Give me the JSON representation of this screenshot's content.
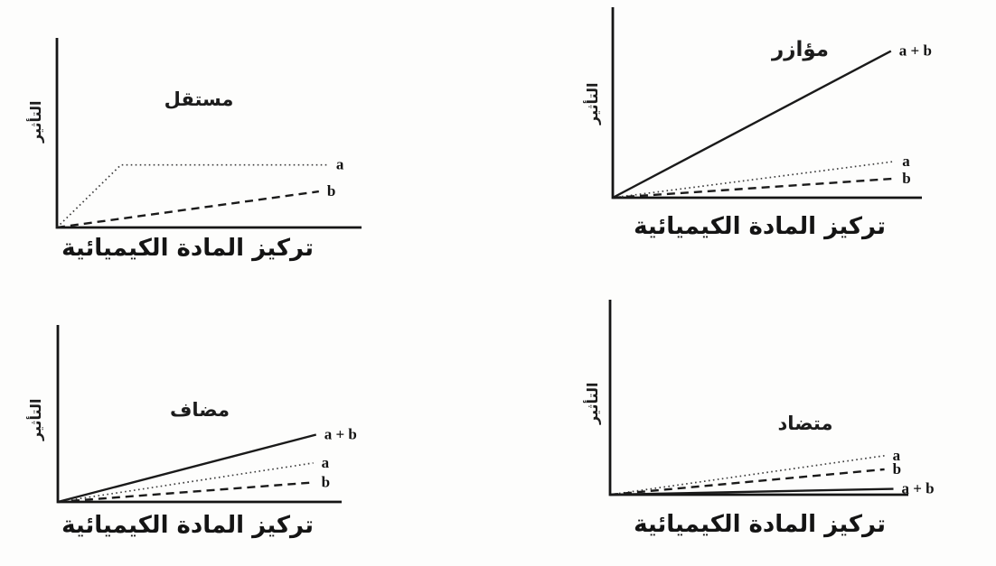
{
  "figure": {
    "background": "#fdfdfc",
    "axis_color": "#151515",
    "line_color": "#1a1a1a",
    "dotted_color": "#3d3d3d"
  },
  "chart_data": [
    {
      "type": "line",
      "title": "مستقل",
      "xlabel": "تركيز المادة الكيميائية",
      "ylabel": "التأثير",
      "x_range": [
        0,
        1
      ],
      "y_range": [
        0,
        1
      ],
      "grid": false,
      "tick_labels": "none",
      "legend_position": "labels-at-line-ends",
      "series": [
        {
          "name": "a",
          "line_style": "dotted",
          "x": [
            0,
            0.21,
            0.89
          ],
          "y": [
            0,
            0.33,
            0.33
          ]
        },
        {
          "name": "b",
          "line_style": "dashed",
          "x": [
            0,
            0.86
          ],
          "y": [
            0,
            0.19
          ]
        }
      ]
    },
    {
      "type": "line",
      "title": "مؤازر",
      "xlabel": "تركيز المادة الكيميائية",
      "ylabel": "التأثير",
      "x_range": [
        0,
        1
      ],
      "y_range": [
        0,
        1
      ],
      "grid": false,
      "tick_labels": "none",
      "legend_position": "labels-at-line-ends",
      "series": [
        {
          "name": "a + b",
          "line_style": "solid",
          "x": [
            0,
            0.9
          ],
          "y": [
            0,
            0.77
          ]
        },
        {
          "name": "a",
          "line_style": "dotted",
          "x": [
            0,
            0.91
          ],
          "y": [
            0,
            0.19
          ]
        },
        {
          "name": "b",
          "line_style": "dashed",
          "x": [
            0,
            0.91
          ],
          "y": [
            0,
            0.1
          ]
        }
      ]
    },
    {
      "type": "line",
      "title": "مضاف",
      "xlabel": "تركيز المادة الكيميائية",
      "ylabel": "التأثير",
      "x_range": [
        0,
        1
      ],
      "y_range": [
        0,
        1
      ],
      "grid": false,
      "tick_labels": "none",
      "legend_position": "labels-at-line-ends",
      "series": [
        {
          "name": "a + b",
          "line_style": "solid",
          "x": [
            0,
            0.91
          ],
          "y": [
            0,
            0.38
          ]
        },
        {
          "name": "a",
          "line_style": "dotted",
          "x": [
            0,
            0.9
          ],
          "y": [
            0,
            0.22
          ]
        },
        {
          "name": "b",
          "line_style": "dashed",
          "x": [
            0,
            0.9
          ],
          "y": [
            0,
            0.11
          ]
        }
      ]
    },
    {
      "type": "line",
      "title": "متضاد",
      "xlabel": "تركيز المادة الكيميائية",
      "ylabel": "التأثير",
      "x_range": [
        0,
        1
      ],
      "y_range": [
        0,
        1
      ],
      "grid": false,
      "tick_labels": "none",
      "legend_position": "labels-at-line-ends",
      "series": [
        {
          "name": "a",
          "line_style": "dotted",
          "x": [
            0,
            0.92
          ],
          "y": [
            0,
            0.2
          ]
        },
        {
          "name": "b",
          "line_style": "dashed",
          "x": [
            0,
            0.92
          ],
          "y": [
            0,
            0.13
          ]
        },
        {
          "name": "a + b",
          "line_style": "solid",
          "x": [
            0,
            0.95
          ],
          "y": [
            0,
            0.03
          ]
        }
      ]
    }
  ]
}
